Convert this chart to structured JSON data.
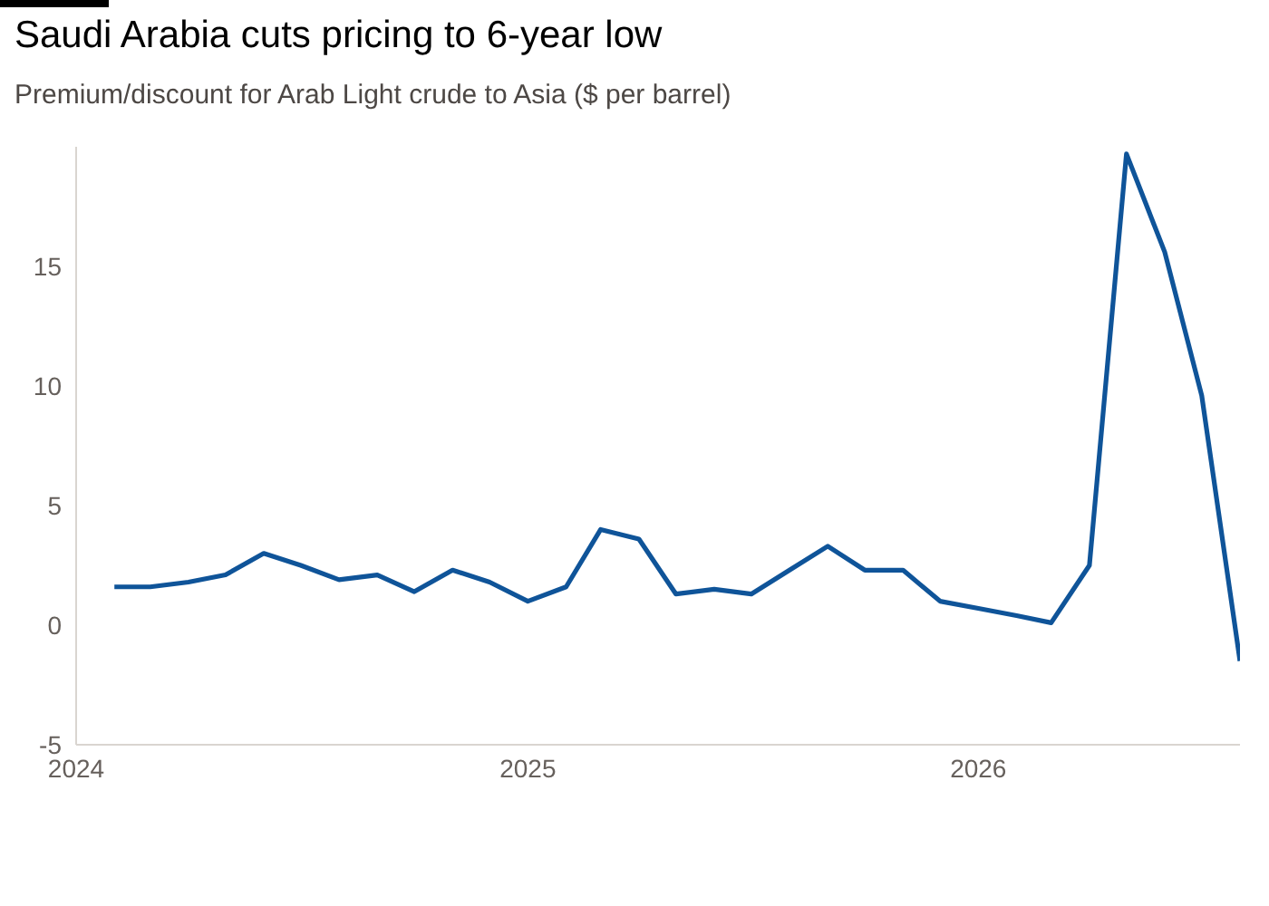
{
  "chart_data": {
    "type": "line",
    "title": "Saudi Arabia cuts pricing to 6-year low",
    "subtitle": "Premium/discount for Arab Light crude to Asia ($ per barrel)",
    "x": [
      "2024-02",
      "2024-03",
      "2024-04",
      "2024-05",
      "2024-06",
      "2024-07",
      "2024-08",
      "2024-09",
      "2024-10",
      "2024-11",
      "2024-12",
      "2025-01",
      "2025-02",
      "2025-03",
      "2025-04",
      "2025-05",
      "2025-06",
      "2025-07",
      "2025-08",
      "2025-09",
      "2025-10",
      "2025-11",
      "2025-12",
      "2026-01",
      "2026-02",
      "2026-03",
      "2026-04",
      "2026-05",
      "2026-06",
      "2026-07",
      "2026-08"
    ],
    "series": [
      {
        "color": "#0f5499",
        "values": [
          1.6,
          1.6,
          1.8,
          2.1,
          3.0,
          2.5,
          1.9,
          2.1,
          1.4,
          2.3,
          1.8,
          1.0,
          1.6,
          4.0,
          3.6,
          1.3,
          1.5,
          1.3,
          2.3,
          3.3,
          2.3,
          2.3,
          1.0,
          0.7,
          0.4,
          0.1,
          2.5,
          19.7,
          15.6,
          9.6,
          -1.5
        ]
      }
    ],
    "xlim": [
      "2024",
      "2026-08"
    ],
    "xticks": [
      "2024",
      "2025",
      "2026"
    ],
    "ylim": [
      -5,
      20
    ],
    "yticks": [
      -5,
      0,
      5,
      10,
      15
    ],
    "grid": false,
    "legend": false,
    "marker": "none",
    "line_style": "solid"
  }
}
